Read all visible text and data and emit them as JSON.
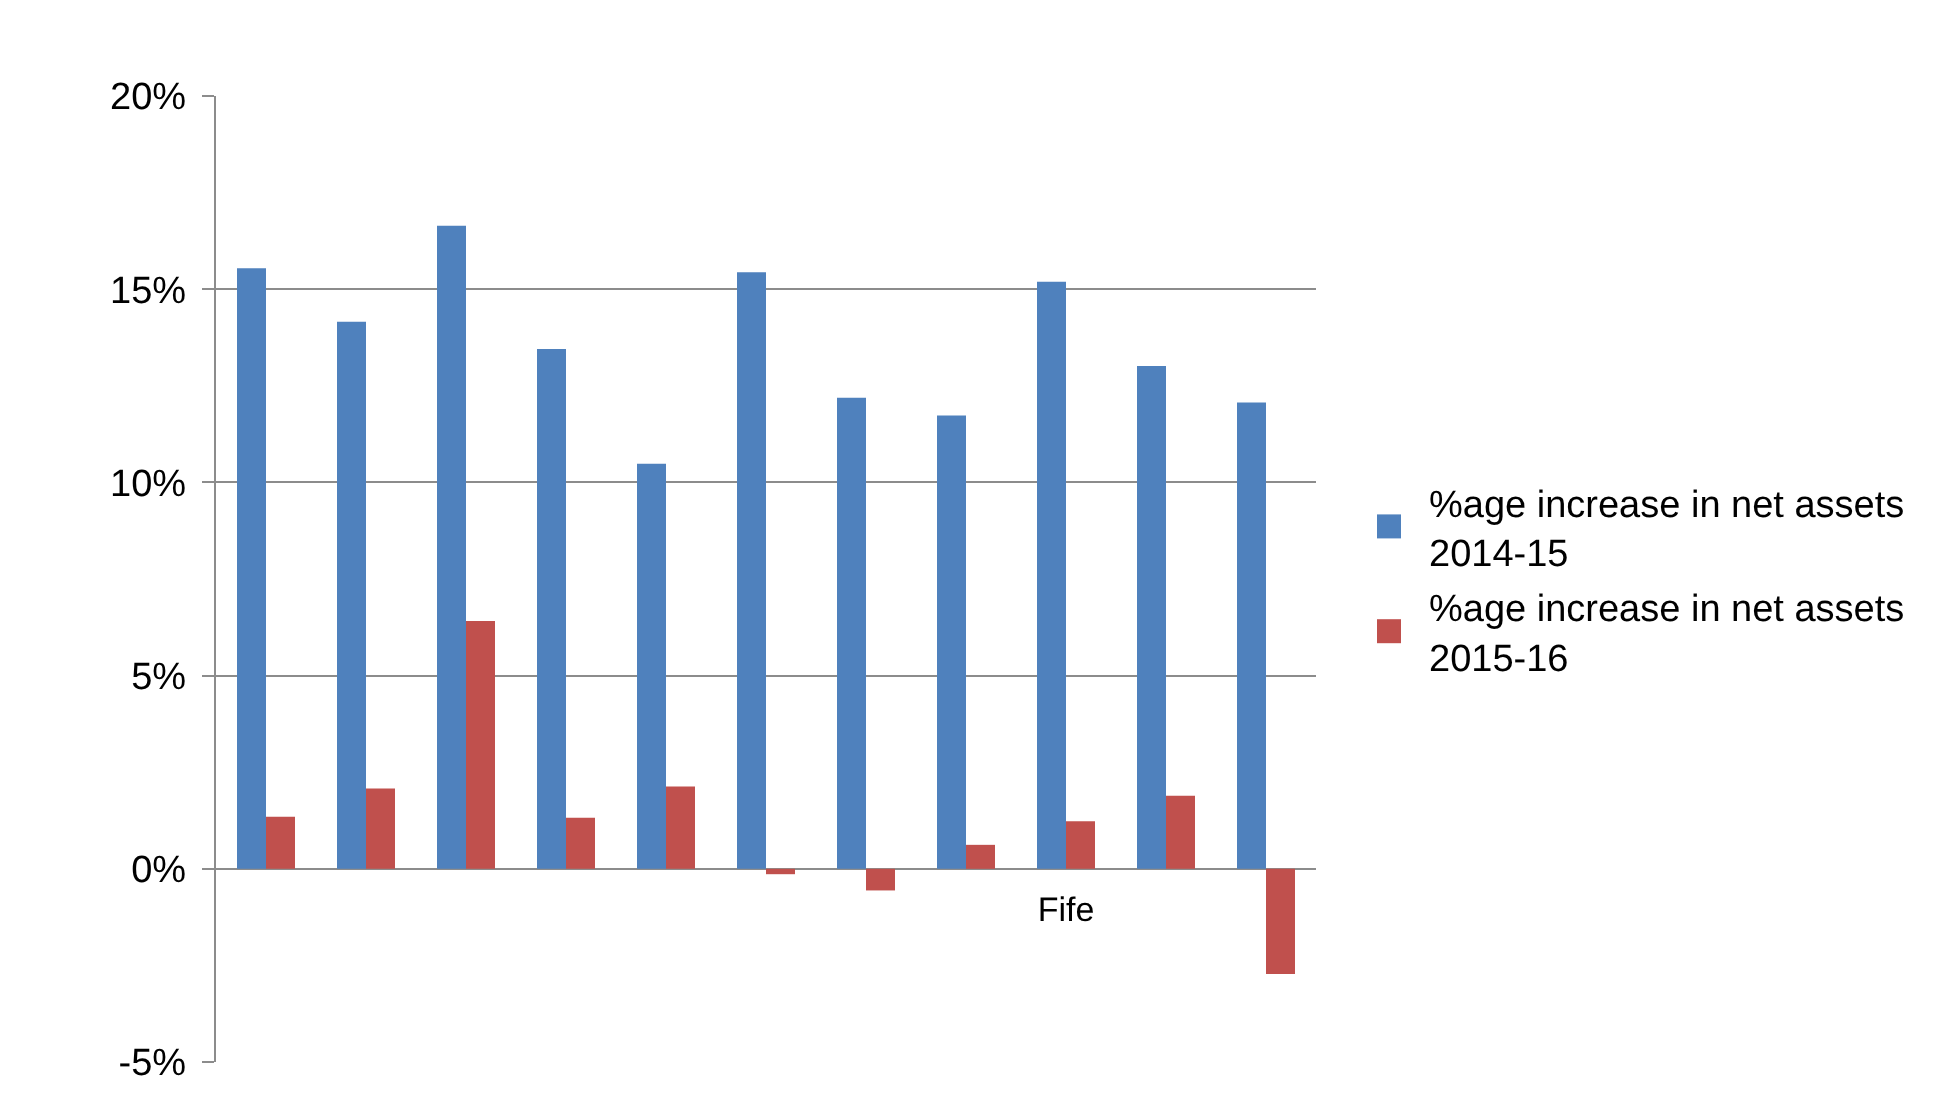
{
  "chart_data": {
    "type": "bar",
    "categories": [
      null,
      null,
      null,
      null,
      null,
      null,
      null,
      null,
      "Fife",
      null,
      null
    ],
    "series": [
      {
        "name": "%age increase in net assets 2014-15",
        "color": "#4f81bd",
        "values": [
          15.54,
          14.16,
          16.64,
          13.45,
          10.48,
          15.44,
          12.19,
          11.73,
          15.19,
          13.01,
          12.07
        ]
      },
      {
        "name": "%age increase in net assets 2015-16",
        "color": "#c0504d",
        "values": [
          1.35,
          2.08,
          6.41,
          1.32,
          2.13,
          -0.14,
          -0.56,
          0.62,
          1.23,
          1.89,
          -2.72
        ]
      }
    ],
    "ylim": [
      -5,
      20
    ],
    "yticks": [
      {
        "value": -5,
        "label": "-5%"
      },
      {
        "value": 0,
        "label": "0%"
      },
      {
        "value": 5,
        "label": "5%"
      },
      {
        "value": 10,
        "label": "10%"
      },
      {
        "value": 15,
        "label": "15%"
      },
      {
        "value": 20,
        "label": "20%"
      }
    ],
    "grid": "y",
    "legend": "right"
  }
}
